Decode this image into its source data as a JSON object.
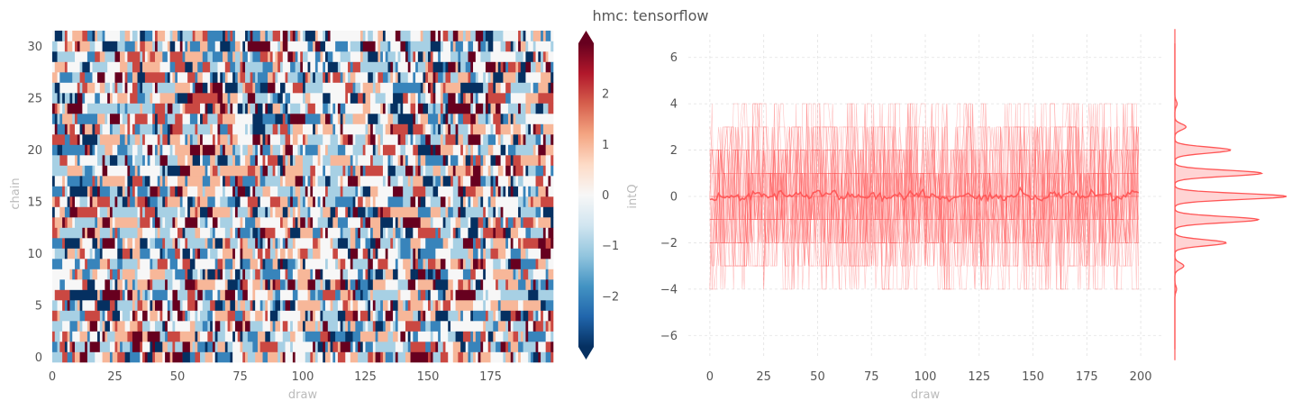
{
  "figure": {
    "title": "hmc: tensorflow"
  },
  "chart_data": [
    {
      "type": "heatmap",
      "xlabel": "draw",
      "ylabel": "chain",
      "colorbar_label": "intQ",
      "xlim": [
        0,
        200
      ],
      "ylim": [
        0,
        32
      ],
      "n_chains": 32,
      "n_draws": 200,
      "value_range": [
        -3,
        3
      ],
      "x_ticks": [
        0,
        25,
        50,
        75,
        100,
        125,
        150,
        175
      ],
      "y_ticks": [
        0,
        5,
        10,
        15,
        20,
        25,
        30
      ],
      "colorbar_ticks": [
        -2,
        -1,
        0,
        1,
        2
      ],
      "colormap": "RdBu_r",
      "colorbar_extend": "both"
    },
    {
      "type": "line",
      "xlabel": "draw",
      "ylabel": "",
      "xlim": [
        -10,
        210
      ],
      "ylim": [
        -7,
        7
      ],
      "x_ticks": [
        0,
        25,
        50,
        75,
        100,
        125,
        150,
        175,
        200
      ],
      "y_ticks": [
        -6,
        -4,
        -2,
        0,
        2,
        4,
        6
      ],
      "n_series": 32,
      "series_color": "#ff5555",
      "mean_line": {
        "approx_value": 0.05
      },
      "grid": true,
      "marginal_kde": {
        "orientation": "horizontal",
        "peaks": [
          {
            "y": 0,
            "rel_height": 1.0
          },
          {
            "y": 1,
            "rel_height": 0.78
          },
          {
            "y": -1,
            "rel_height": 0.75
          },
          {
            "y": 2,
            "rel_height": 0.5
          },
          {
            "y": -2,
            "rel_height": 0.46
          },
          {
            "y": 3,
            "rel_height": 0.1
          },
          {
            "y": -3,
            "rel_height": 0.08
          },
          {
            "y": 4,
            "rel_height": 0.02
          },
          {
            "y": -4,
            "rel_height": 0.015
          }
        ]
      }
    }
  ]
}
